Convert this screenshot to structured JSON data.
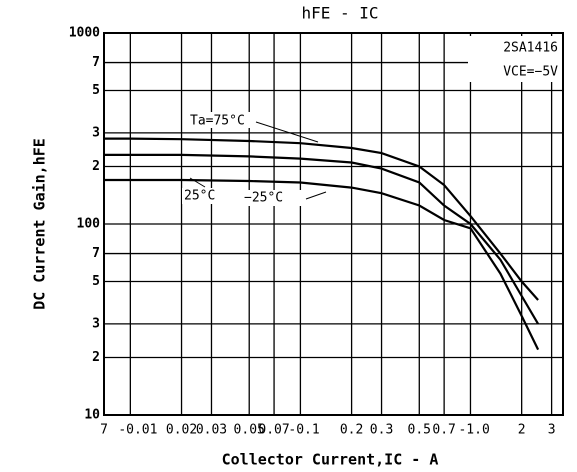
{
  "chart_data": {
    "type": "line",
    "title": "hFE - IC",
    "x_label": "Collector Current,IC - A",
    "y_label": "DC Current Gain,hFE",
    "annotations": [
      "2SA1416",
      "VCE=−5V",
      "Ta=75°C",
      "25°C",
      "−25°C"
    ],
    "log_x": true,
    "log_y": true,
    "grid": true,
    "color": "#000000",
    "x": [
      0.007,
      0.01,
      0.02,
      0.05,
      0.1,
      0.2,
      0.3,
      0.5,
      0.7,
      1.0,
      1.5,
      2.0,
      2.5
    ],
    "series": [
      {
        "name": "Ta=75°C",
        "color": "#000000",
        "values": [
          280,
          280,
          278,
          272,
          265,
          250,
          235,
          200,
          160,
          110,
          70,
          50,
          40
        ]
      },
      {
        "name": "25°C",
        "color": "#000000",
        "values": [
          230,
          230,
          230,
          226,
          220,
          210,
          195,
          165,
          125,
          100,
          65,
          42,
          30
        ]
      },
      {
        "name": "−25°C",
        "color": "#000000",
        "values": [
          170,
          170,
          170,
          168,
          165,
          155,
          145,
          125,
          105,
          95,
          55,
          33,
          22
        ]
      }
    ],
    "xlim": [
      0.007,
      3.5
    ],
    "ylim": [
      10,
      1000
    ],
    "xticks": [
      {
        "value": 0.007,
        "label": "7"
      },
      {
        "value": 0.01,
        "label": "-0.01"
      },
      0.02,
      0.03,
      0.05,
      0.07,
      {
        "value": 0.1,
        "label": "-0.1"
      },
      0.2,
      0.3,
      0.5,
      0.7,
      {
        "value": 1.0,
        "label": "-1.0"
      },
      2,
      3
    ],
    "yticks": [
      1000,
      {
        "value": 700,
        "label": "7"
      },
      {
        "value": 500,
        "label": "5"
      },
      {
        "value": 300,
        "label": "3"
      },
      {
        "value": 200,
        "label": "2"
      },
      100,
      {
        "value": 70,
        "label": "7"
      },
      {
        "value": 50,
        "label": "5"
      },
      {
        "value": 30,
        "label": "3"
      },
      {
        "value": 20,
        "label": "2"
      },
      10
    ]
  }
}
